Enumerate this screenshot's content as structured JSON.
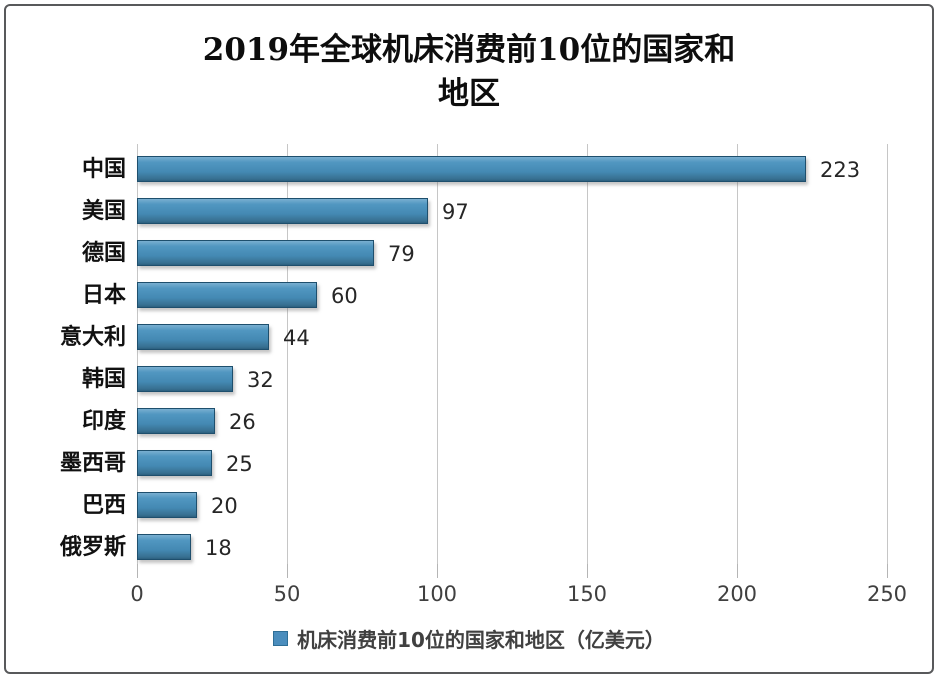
{
  "title": {
    "line1": "2019年全球机床消费前10位的国家和",
    "line2": "地区"
  },
  "legend": {
    "label": "机床消费前10位的国家和地区（亿美元）"
  },
  "colors": {
    "bar_fill": "#4489b3",
    "bar_border": "#1e4f6d",
    "gridline": "#c6c6c6",
    "frame_border": "#58595b",
    "title_text": "#0d0d0d",
    "tick_text": "#404040"
  },
  "chart_data": {
    "type": "bar",
    "orientation": "horizontal",
    "title": "2019年全球机床消费前10位的国家和地区",
    "categories": [
      "中国",
      "美国",
      "德国",
      "日本",
      "意大利",
      "韩国",
      "印度",
      "墨西哥",
      "巴西",
      "俄罗斯"
    ],
    "values": [
      223,
      97,
      79,
      60,
      44,
      32,
      26,
      25,
      20,
      18
    ],
    "value_labels": [
      "223",
      "97",
      "79",
      "60",
      "44",
      "32",
      "26",
      "25",
      "20",
      "18"
    ],
    "xlabel": "",
    "ylabel": "",
    "xlim": [
      0,
      250
    ],
    "xticks": [
      0,
      50,
      100,
      150,
      200,
      250
    ],
    "grid": true,
    "legend_entries": [
      "机床消费前10位的国家和地区（亿美元）"
    ],
    "legend_position": "bottom",
    "unit": "亿美元"
  }
}
